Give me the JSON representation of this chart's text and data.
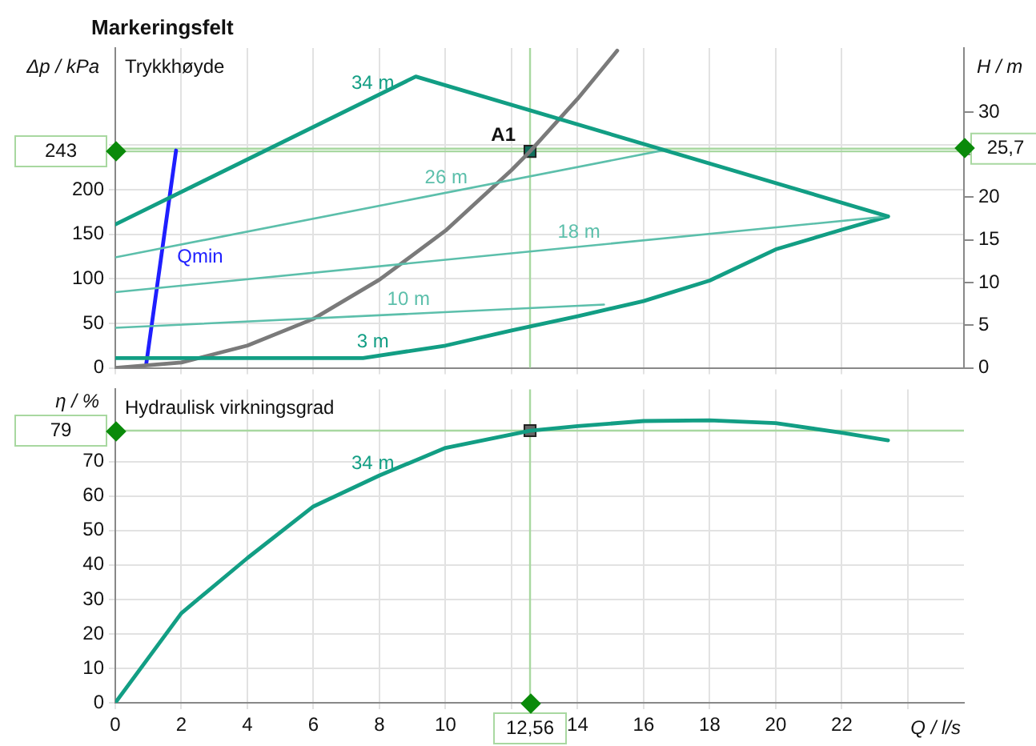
{
  "chart_data": [
    {
      "type": "line",
      "title": "Markeringsfelt",
      "subtitle": "Trykkhøyde",
      "ylabel": "Δp / kPa",
      "y2label": "H / m",
      "xlim": [
        0,
        25.7
      ],
      "xticks": [
        0,
        2,
        4,
        6,
        8,
        10,
        12,
        14,
        16,
        18,
        20,
        22
      ],
      "ylim": [
        0,
        359
      ],
      "yticks": [
        0,
        50,
        100,
        150,
        200,
        {
          "value": 250,
          "label": null
        }
      ],
      "y2lim": [
        0,
        37.5
      ],
      "y2ticks": [
        0,
        5,
        10,
        15,
        20,
        {
          "value": 25,
          "label": null
        },
        30
      ],
      "tick_labels": "y",
      "grid": true,
      "legend": false,
      "series": [
        {
          "name": "34 m",
          "color": "#129e84",
          "x": [
            0,
            9.1,
            23.4
          ],
          "values": [
            161,
            327,
            170
          ]
        },
        {
          "name": "26 m",
          "color": "#5cbfab",
          "x": [
            0,
            16.7
          ],
          "values": [
            124,
            245
          ]
        },
        {
          "name": "18 m",
          "color": "#5cbfab",
          "x": [
            0,
            23.4
          ],
          "values": [
            85,
            170
          ]
        },
        {
          "name": "10 m",
          "color": "#5cbfab",
          "x": [
            0,
            14.8
          ],
          "values": [
            45,
            71
          ]
        },
        {
          "name": "3 m",
          "color": "#129e84",
          "x": [
            0,
            7.5,
            10,
            12,
            14,
            16,
            18,
            20,
            22,
            23.4
          ],
          "values": [
            11,
            11,
            25,
            42,
            58,
            75,
            98,
            133,
            155,
            170
          ]
        },
        {
          "color": "#7a7a7a",
          "x": [
            0,
            2,
            4,
            6,
            8,
            10,
            12,
            12.56,
            14,
            15.2
          ],
          "values": [
            0,
            6,
            25,
            55,
            99,
            154,
            222,
            243,
            302,
            356
          ]
        },
        {
          "name": "Qmin",
          "color": "#1f1fff",
          "x": [
            0.94,
            1.84
          ],
          "values": [
            5,
            244
          ]
        },
        {
          "type": "scatter",
          "marker": "square",
          "color": "#0e6e5c",
          "x": [
            12.56
          ],
          "values": [
            243
          ]
        }
      ],
      "ref_lines": [
        {
          "axis": "y",
          "value": 243,
          "label": "243",
          "color": "#a8d8a0"
        },
        {
          "axis": "y2",
          "value": 25.7,
          "label": "25,7",
          "color": "#a8d8a0"
        },
        {
          "axis": "x",
          "value": 12.56,
          "color": "#a8d8a0"
        }
      ],
      "annotations": [
        {
          "text": "A1",
          "x": 12.56,
          "y": 243
        }
      ]
    },
    {
      "type": "line",
      "title": "Hydraulisk virkningsgrad",
      "ylabel": "η / %",
      "xlabel": "Q / l/s",
      "xlim": [
        0,
        25.7
      ],
      "xticks": [
        0,
        2,
        4,
        6,
        8,
        10,
        {
          "value": 12,
          "label": null
        },
        14,
        16,
        18,
        20,
        22,
        {
          "value": 24,
          "label": null
        }
      ],
      "ylim": [
        0,
        91
      ],
      "yticks": [
        0,
        10,
        20,
        30,
        40,
        50,
        60,
        70
      ],
      "grid": true,
      "legend": false,
      "series": [
        {
          "name": "34 m",
          "color": "#129e84",
          "x": [
            0,
            2,
            4,
            6,
            8,
            10,
            12.56,
            14,
            16,
            18,
            20,
            22,
            23.4
          ],
          "values": [
            0,
            26,
            42,
            57,
            66,
            74,
            79,
            80.3,
            81.8,
            82,
            81.2,
            78.4,
            76.2
          ]
        },
        {
          "type": "scatter",
          "marker": "square",
          "color": "#666666",
          "x": [
            12.56
          ],
          "values": [
            79
          ]
        }
      ],
      "ref_lines": [
        {
          "axis": "y",
          "value": 79,
          "label": "79",
          "color": "#a8d8a0"
        },
        {
          "axis": "x",
          "value": 12.56,
          "label": "12,56",
          "color": "#a8d8a0"
        }
      ]
    }
  ]
}
